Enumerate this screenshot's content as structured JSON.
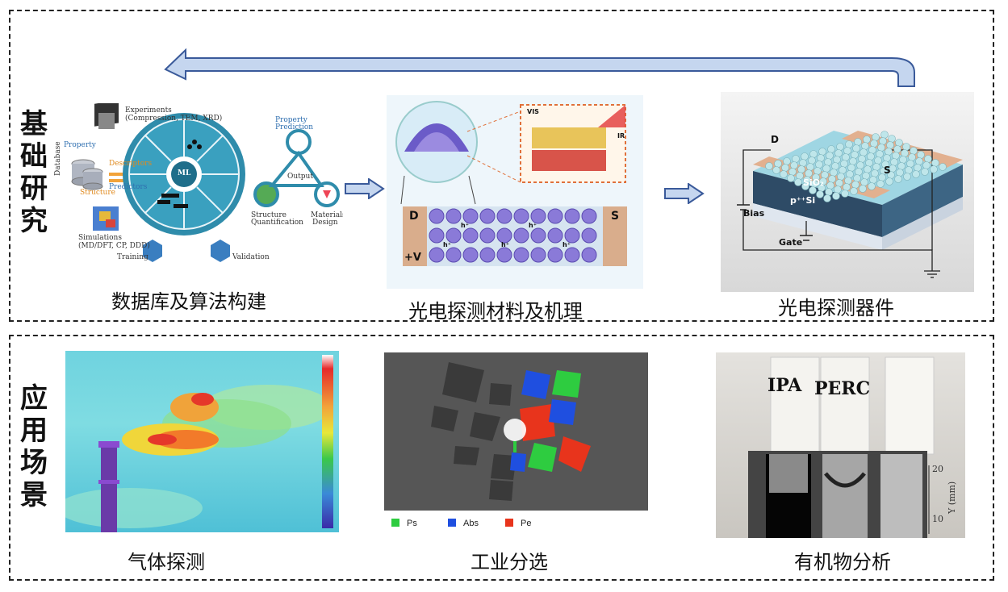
{
  "sections": {
    "top_title": [
      "基",
      "础",
      "研",
      "究"
    ],
    "bottom_title": [
      "应",
      "用",
      "场",
      "景"
    ]
  },
  "captions": {
    "database": "数据库及算法构建",
    "materials": "光电探测材料及机理",
    "device": "光电探测器件",
    "gas": "气体探测",
    "sorting": "工业分选",
    "organic": "有机物分析"
  },
  "ml_panel": {
    "experiments": "Experiments",
    "experiments_sub": "(Compression, TEM, XRD)",
    "property": "Property",
    "database": "Database",
    "structure": "Structure",
    "descriptors": "Descriptors",
    "predictors": "Predictors",
    "simulations": "Simulations",
    "simulations_sub": "(MD/DFT, CP, DDD)",
    "ml": "ML",
    "training": "Training",
    "validation": "Validation",
    "property_prediction_1": "Property",
    "property_prediction_2": "Prediction",
    "output": "Output",
    "structure_quant_1": "Structure",
    "structure_quant_2": "Quantification",
    "materials_design_1": "Materials",
    "materials_design_2": "Design"
  },
  "materials_panel": {
    "vis": "VIS",
    "ir": "IR",
    "d": "D",
    "s": "S",
    "v": "+V",
    "h": "h⁺"
  },
  "device_panel": {
    "d": "D",
    "s": "S",
    "sio2": "SiO₂",
    "psi": "p⁺⁺Si",
    "bias": "Bias",
    "gate": "Gate"
  },
  "sorting_legend": [
    {
      "label": "Ps",
      "color": "#2ecc40"
    },
    {
      "label": "Abs",
      "color": "#1f4fe0"
    },
    {
      "label": "Pe",
      "color": "#e8341c"
    }
  ],
  "organic_panel": {
    "ipa": "IPA",
    "perc": "PERC",
    "axis_label": "Y (mm)",
    "tick_20": "20",
    "tick_10": "10"
  },
  "colors": {
    "arrow_fill": "#c5d6ef",
    "arrow_stroke": "#3a5a9a"
  }
}
